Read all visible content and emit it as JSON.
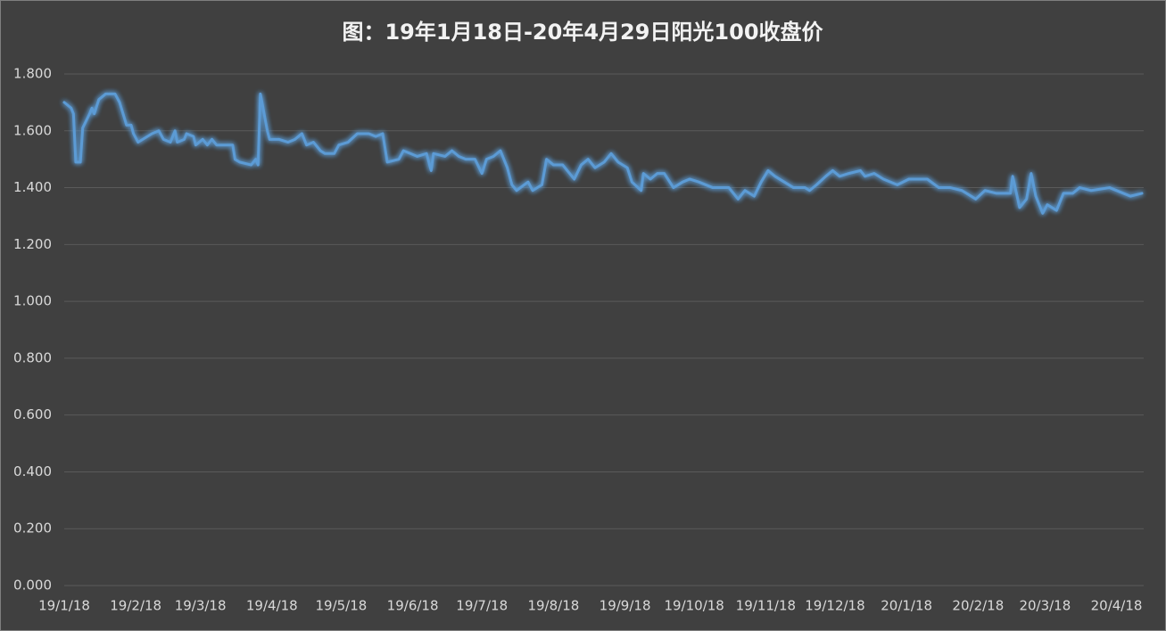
{
  "chart_data": {
    "type": "line",
    "title": "图：19年1月18日-20年4月29日阳光100收盘价",
    "color": "#5b9bd5",
    "grid": true,
    "xlim": [
      "19/1/18",
      "20/4/29"
    ],
    "xticks": [
      "19/1/18",
      "19/2/18",
      "19/3/18",
      "19/4/18",
      "19/5/18",
      "19/6/18",
      "19/7/18",
      "19/8/18",
      "19/9/18",
      "19/10/18",
      "19/11/18",
      "19/12/18",
      "20/1/18",
      "20/2/18",
      "20/3/18",
      "20/4/18"
    ],
    "ylim": [
      0,
      1.8
    ],
    "yticks": [
      {
        "value": 0,
        "label": "0.000"
      },
      {
        "value": 0.2,
        "label": "0.200"
      },
      {
        "value": 0.4,
        "label": "0.400"
      },
      {
        "value": 0.6,
        "label": "0.600"
      },
      {
        "value": 0.8,
        "label": "0.800"
      },
      {
        "value": 1,
        "label": "1.000"
      },
      {
        "value": 1.2,
        "label": "1.200"
      },
      {
        "value": 1.4,
        "label": "1.400"
      },
      {
        "value": 1.6,
        "label": "1.600"
      },
      {
        "value": 1.8,
        "label": "1.800"
      }
    ],
    "x": [
      "19/1/18",
      "19/1/21",
      "19/1/22",
      "19/1/23",
      "19/1/25",
      "19/1/26",
      "19/1/29",
      "19/1/30",
      "19/1/31",
      "19/2/2",
      "19/2/5",
      "19/2/9",
      "19/2/11",
      "19/2/14",
      "19/2/16",
      "19/2/17",
      "19/2/19",
      "19/2/21",
      "19/2/25",
      "19/2/28",
      "19/3/2",
      "19/3/5",
      "19/3/7",
      "19/3/8",
      "19/3/11",
      "19/3/12",
      "19/3/15",
      "19/3/16",
      "19/3/19",
      "19/3/21",
      "19/3/23",
      "19/3/25",
      "19/3/28",
      "19/4/1",
      "19/4/2",
      "19/4/4",
      "19/4/9",
      "19/4/11",
      "19/4/12",
      "19/4/13",
      "19/4/16",
      "19/4/17",
      "19/4/21",
      "19/4/25",
      "19/4/28",
      "19/5/1",
      "19/5/3",
      "19/5/6",
      "19/5/9",
      "19/5/11",
      "19/5/15",
      "19/5/17",
      "19/5/21",
      "19/5/25",
      "19/5/30",
      "19/6/2",
      "19/6/5",
      "19/6/7",
      "19/6/12",
      "19/6/14",
      "19/6/17",
      "19/6/20",
      "19/6/24",
      "19/6/26",
      "19/6/27",
      "19/7/2",
      "19/7/5",
      "19/7/8",
      "19/7/11",
      "19/7/15",
      "19/7/18",
      "19/7/20",
      "19/7/23",
      "19/7/26",
      "19/7/29",
      "19/7/31",
      "19/8/2",
      "19/8/7",
      "19/8/9",
      "19/8/13",
      "19/8/15",
      "19/8/18",
      "19/8/22",
      "19/8/24",
      "19/8/27",
      "19/8/30",
      "19/9/2",
      "19/9/5",
      "19/9/9",
      "19/9/12",
      "19/9/15",
      "19/9/19",
      "19/9/21",
      "19/9/25",
      "19/9/26",
      "19/9/29",
      "19/10/2",
      "19/10/5",
      "19/10/9",
      "19/10/13",
      "19/10/16",
      "19/10/20",
      "19/10/26",
      "19/11/2",
      "19/11/6",
      "19/11/9",
      "19/11/13",
      "19/11/16",
      "19/11/19",
      "19/11/22",
      "19/11/26",
      "19/11/30",
      "19/12/5",
      "19/12/7",
      "19/12/10",
      "19/12/14",
      "19/12/17",
      "19/12/20",
      "19/12/24",
      "19/12/29",
      "19/12/31",
      "20/1/4",
      "20/1/8",
      "20/1/14",
      "20/1/19",
      "20/1/27",
      "20/2/1",
      "20/2/6",
      "20/2/11",
      "20/2/17",
      "20/2/21",
      "20/2/26",
      "20/3/3",
      "20/3/4",
      "20/3/7",
      "20/3/10",
      "20/3/12",
      "20/3/14",
      "20/3/17",
      "20/3/19",
      "20/3/23",
      "20/3/26",
      "20/3/30",
      "20/4/2",
      "20/4/7",
      "20/4/15",
      "20/4/21",
      "20/4/24",
      "20/4/29"
    ],
    "values": [
      1.7,
      1.68,
      1.66,
      1.49,
      1.49,
      1.61,
      1.66,
      1.68,
      1.66,
      1.71,
      1.73,
      1.73,
      1.7,
      1.62,
      1.62,
      1.59,
      1.56,
      1.57,
      1.59,
      1.6,
      1.57,
      1.56,
      1.6,
      1.56,
      1.57,
      1.59,
      1.58,
      1.55,
      1.57,
      1.55,
      1.57,
      1.55,
      1.55,
      1.55,
      1.5,
      1.49,
      1.48,
      1.5,
      1.48,
      1.73,
      1.6,
      1.57,
      1.57,
      1.56,
      1.57,
      1.59,
      1.55,
      1.56,
      1.53,
      1.52,
      1.52,
      1.55,
      1.56,
      1.59,
      1.59,
      1.58,
      1.59,
      1.49,
      1.5,
      1.53,
      1.52,
      1.51,
      1.52,
      1.46,
      1.52,
      1.51,
      1.53,
      1.51,
      1.5,
      1.5,
      1.45,
      1.5,
      1.51,
      1.53,
      1.47,
      1.41,
      1.39,
      1.42,
      1.39,
      1.41,
      1.5,
      1.48,
      1.48,
      1.46,
      1.43,
      1.48,
      1.5,
      1.47,
      1.49,
      1.52,
      1.49,
      1.47,
      1.42,
      1.39,
      1.45,
      1.43,
      1.45,
      1.45,
      1.4,
      1.42,
      1.43,
      1.42,
      1.4,
      1.4,
      1.36,
      1.39,
      1.37,
      1.42,
      1.46,
      1.44,
      1.42,
      1.4,
      1.4,
      1.39,
      1.41,
      1.44,
      1.46,
      1.44,
      1.45,
      1.46,
      1.44,
      1.45,
      1.43,
      1.41,
      1.43,
      1.43,
      1.4,
      1.4,
      1.39,
      1.36,
      1.39,
      1.38,
      1.38,
      1.44,
      1.33,
      1.36,
      1.45,
      1.37,
      1.31,
      1.34,
      1.32,
      1.38,
      1.38,
      1.4,
      1.39,
      1.4,
      1.38,
      1.37,
      1.38
    ]
  }
}
